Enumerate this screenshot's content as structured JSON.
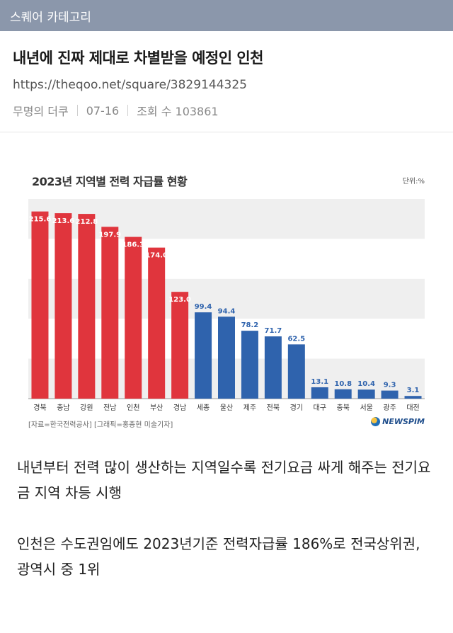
{
  "topbar": {
    "title": "스퀘어 카테고리"
  },
  "post": {
    "title": "내년에 진짜 제대로 차별받을 예정인 인천",
    "url": "https://theqoo.net/square/3829144325",
    "author": "무명의 더쿠",
    "date": "07-16",
    "views": "조회 수 103861"
  },
  "chart_data": {
    "type": "bar",
    "title": "2023년 지역별 전력 자급률 현황",
    "unit": "단위:%",
    "categories": [
      "경북",
      "충남",
      "강원",
      "전남",
      "인천",
      "부산",
      "경남",
      "세종",
      "울산",
      "제주",
      "전북",
      "경기",
      "대구",
      "충북",
      "서울",
      "광주",
      "대전"
    ],
    "values": [
      215.6,
      213.6,
      212.8,
      197.9,
      186.3,
      174.0,
      123.0,
      99.4,
      94.4,
      78.2,
      71.7,
      62.5,
      13.1,
      10.8,
      10.4,
      9.3,
      3.1
    ],
    "value_labels": [
      "215.6",
      "213.6",
      "212.8",
      "197.9",
      "186.3",
      "174.0",
      "123.0",
      "99.4",
      "94.4",
      "78.2",
      "71.7",
      "62.5",
      "13.1",
      "10.8",
      "10.4",
      "9.3",
      "3.1"
    ],
    "colors": {
      "above_100": "#e0353d",
      "below_100": "#2f63ad",
      "band": "#efefef"
    },
    "ylim": [
      0,
      230
    ],
    "source": "[자료=한국전력공사] [그래픽=홍종현 미술기자]",
    "logo": "NEWSPIM"
  },
  "body": {
    "paragraph1": "내년부터 전력 많이 생산하는 지역일수록 전기요금 싸게 해주는 전기요금 지역 차등 시행",
    "paragraph2": "인천은 수도권임에도 2023년기준 전력자급률 186%로 전국상위권, 광역시 중 1위"
  }
}
